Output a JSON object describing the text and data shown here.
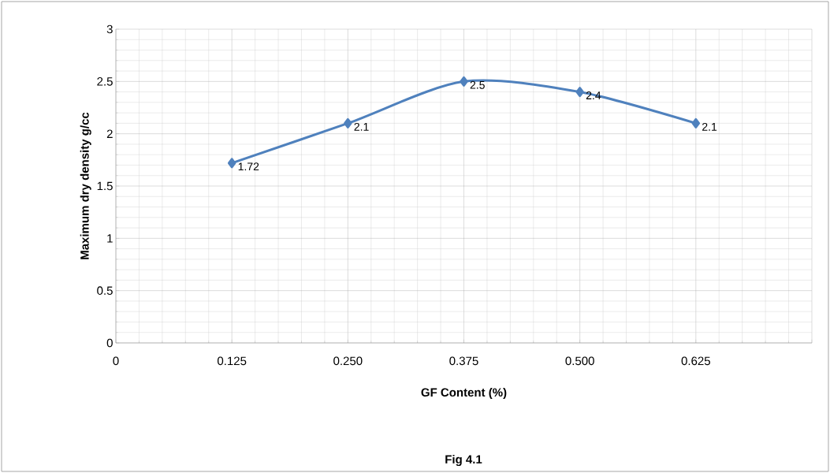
{
  "chart_data": {
    "type": "line",
    "xlabel": "GF Content (%)",
    "ylabel": "Maximum dry density g/cc",
    "annotations": [
      "Fig 4.1"
    ],
    "x": [
      0.125,
      0.25,
      0.375,
      0.5,
      0.625
    ],
    "series": [
      {
        "color": "#4f81bd",
        "values": [
          1.72,
          2.1,
          2.5,
          2.4,
          2.1
        ]
      }
    ],
    "xlim": [
      0,
      0.75
    ],
    "xticks": [
      0,
      {
        "value": 0.125,
        "label": "0.125"
      },
      {
        "value": 0.25,
        "label": "0.250"
      },
      {
        "value": 0.375,
        "label": "0.375"
      },
      {
        "value": 0.5,
        "label": "0.500"
      },
      {
        "value": 0.625,
        "label": "0.625"
      },
      {
        "value": 0.75,
        "label": null
      }
    ],
    "ylim": [
      0,
      3
    ],
    "yticks": [
      0,
      0.5,
      1,
      1.5,
      2,
      2.5,
      3
    ],
    "grid": true,
    "marker": "diamond",
    "line_style": "solid",
    "data_labels": true
  }
}
